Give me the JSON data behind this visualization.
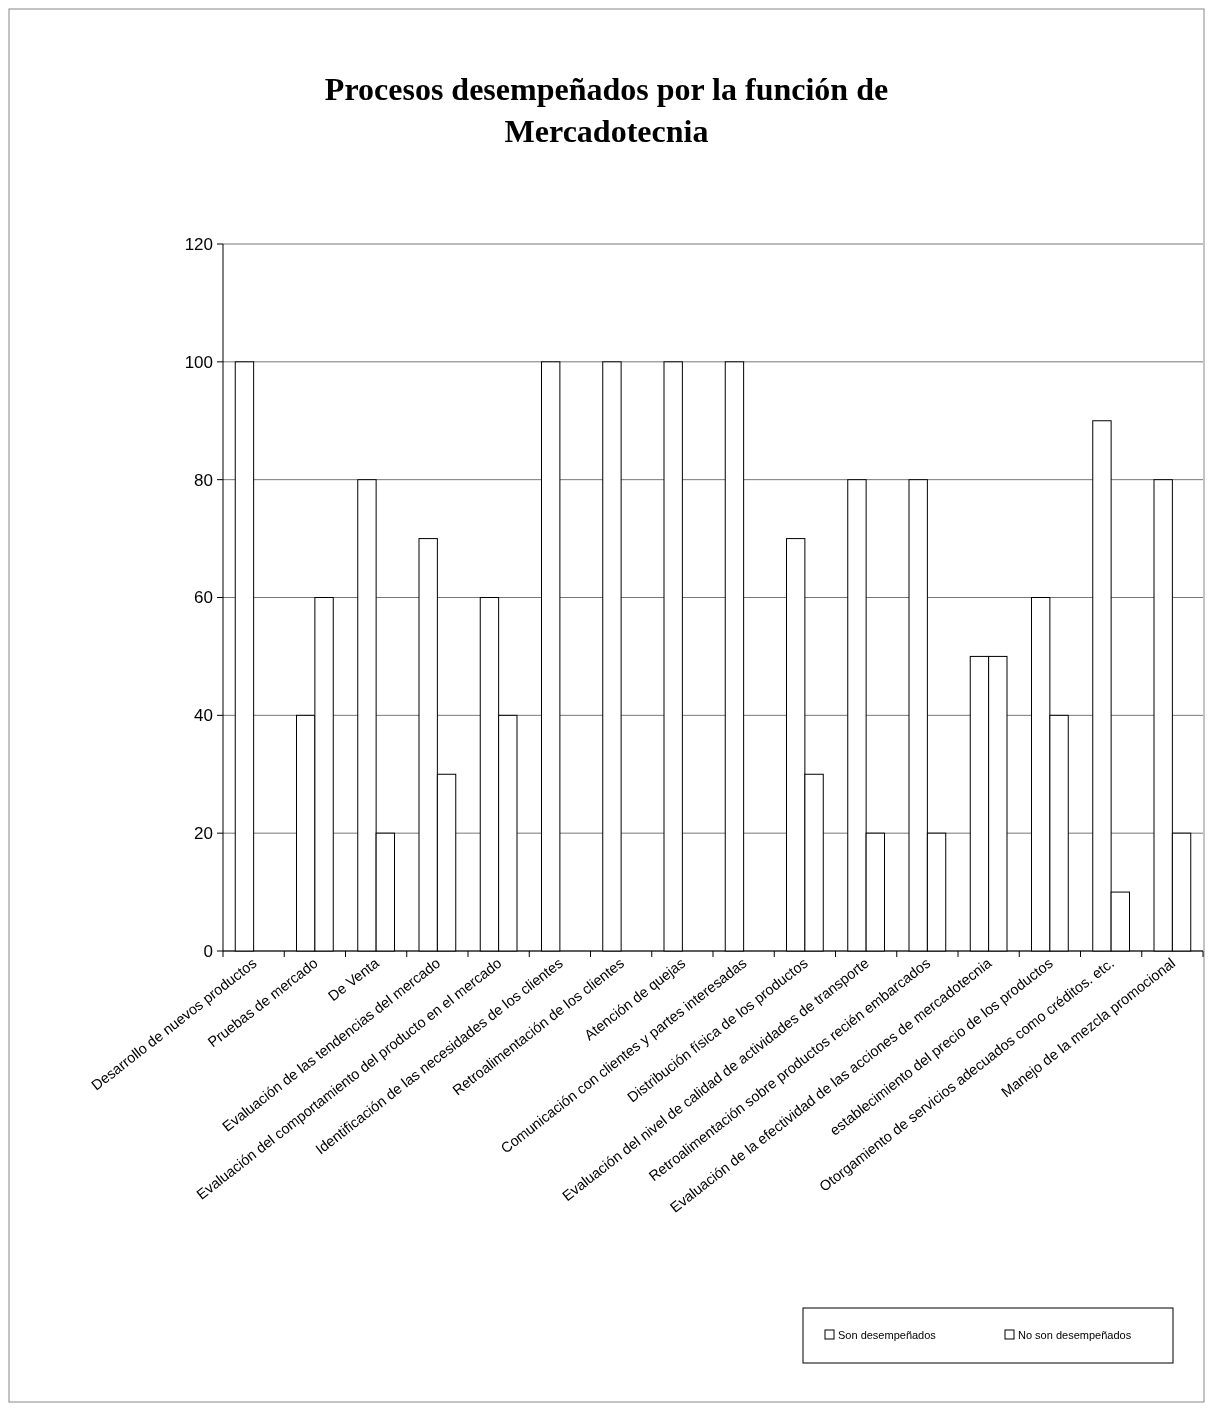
{
  "chart_data": {
    "type": "bar",
    "title": "Procesos desempeñados por la función de Mercadotecnia",
    "categories": [
      "Desarrollo de nuevos productos",
      "Pruebas de mercado",
      "De Venta",
      "Evaluación de las tendencias del mercado",
      "Evaluación del comportamiento del producto en el mercado",
      "Identificación de las necesidades de los clientes",
      "Retroalimentación de los clientes",
      "Atención de quejas",
      "Comunicación con clientes y partes interesadas",
      "Distribución física de los productos",
      "Evaluación del nivel de calidad de actividades de transporte",
      "Retroalimentación sobre productos recién embarcados",
      "Evaluación de la efectividad de las acciones de mercadotecnia",
      "establecimiento del precio de los productos",
      "Otorgamiento  de servicios adecuados como créditos. etc.",
      "Manejo de la mezcla promocional"
    ],
    "series": [
      {
        "name": "Son desempeñados",
        "color": "#ffffff",
        "values": [
          100,
          40,
          80,
          70,
          60,
          100,
          100,
          100,
          100,
          70,
          80,
          80,
          50,
          60,
          90,
          80
        ]
      },
      {
        "name": "No son desempeñados",
        "color": "#ffffff",
        "values": [
          0,
          60,
          20,
          30,
          40,
          0,
          0,
          0,
          0,
          30,
          20,
          20,
          50,
          40,
          10,
          20
        ]
      }
    ],
    "ylim": [
      0,
      120
    ],
    "yticks": [
      0,
      20,
      40,
      60,
      80,
      100,
      120
    ],
    "grid": "y",
    "legend": "bottom right"
  }
}
